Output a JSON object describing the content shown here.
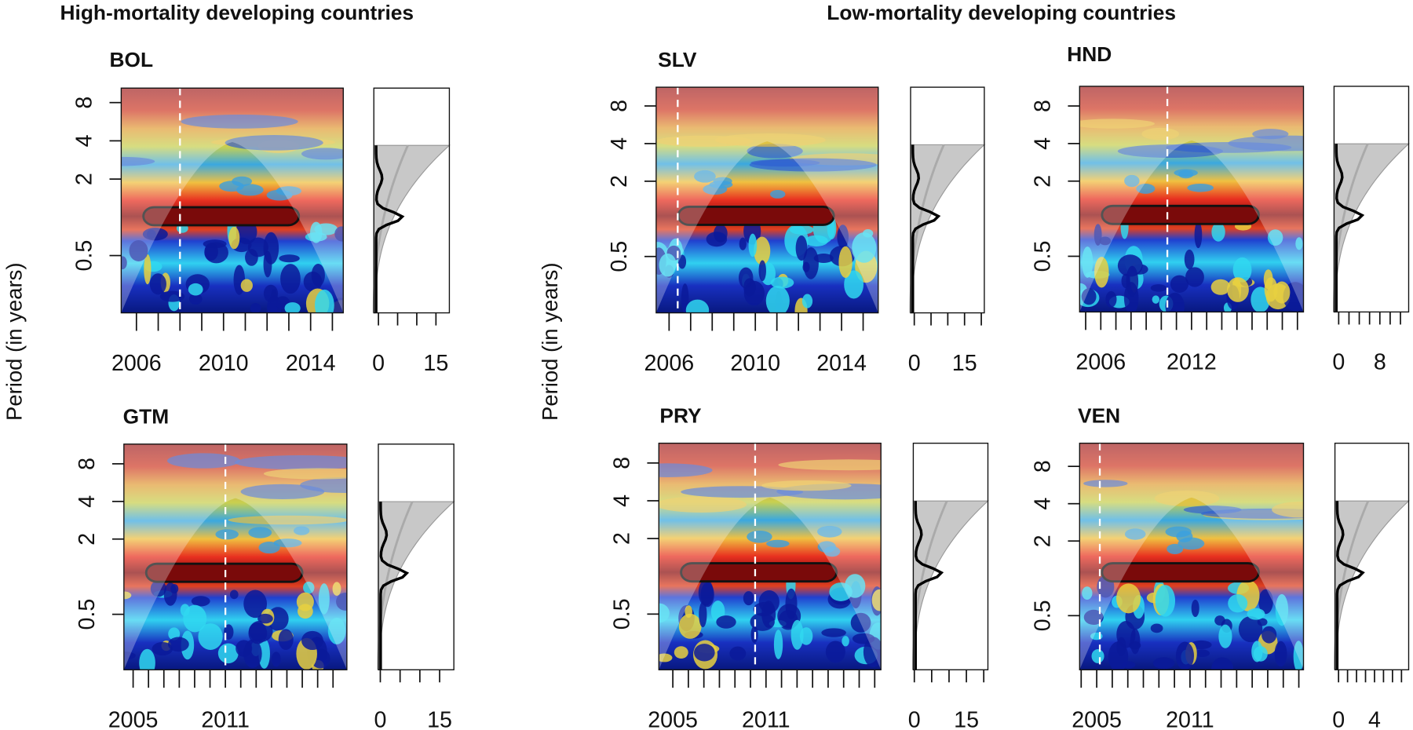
{
  "figure": {
    "group_titles": [
      "High-mortality developing countries",
      "Low-mortality developing countries"
    ],
    "ylabel": "Period (in years)"
  },
  "chart_data": [
    {
      "type": "wavelet",
      "title": "BOL",
      "xlim": [
        2005.3,
        2015.5
      ],
      "xticks": [
        2006,
        2010,
        2014
      ],
      "xminor": [
        2007,
        2008,
        2009,
        2011,
        2012,
        2013,
        2015
      ],
      "ylim": [
        0.177,
        10.4
      ],
      "yticks": [
        0.5,
        2,
        4,
        8
      ],
      "log_y": true,
      "marker_x": 2008,
      "power_xlim": [
        -1.2,
        18.5
      ],
      "power_xticks": [
        0,
        15
      ],
      "power_xminor": [
        5,
        10
      ]
    },
    {
      "type": "wavelet",
      "title": "GTM",
      "xlim": [
        2004.4,
        2018.9
      ],
      "xticks": [
        2005,
        2011
      ],
      "xminor": [
        2006,
        2007,
        2008,
        2009,
        2010,
        2012,
        2013,
        2014,
        2015,
        2016,
        2017,
        2018
      ],
      "ylim": [
        0.18,
        11.5
      ],
      "yticks": [
        0.5,
        2,
        4,
        8
      ],
      "log_y": true,
      "marker_x": 2011,
      "power_xlim": [
        -0.5,
        18.6
      ],
      "power_xticks": [
        0,
        15
      ],
      "power_xminor": [
        5,
        10
      ]
    },
    {
      "type": "wavelet",
      "title": "SLV",
      "xlim": [
        2005.4,
        2015.7
      ],
      "xticks": [
        2006,
        2010,
        2014
      ],
      "xminor": [
        2007,
        2008,
        2009,
        2011,
        2012,
        2013,
        2015
      ],
      "ylim": [
        0.177,
        11.3
      ],
      "yticks": [
        0.5,
        2,
        4,
        8
      ],
      "log_y": true,
      "marker_x": 2006.4,
      "power_xlim": [
        -1.1,
        20.9
      ],
      "power_xticks": [
        0,
        15
      ],
      "power_xminor": [
        5,
        10,
        20
      ]
    },
    {
      "type": "wavelet",
      "title": "HND",
      "xlim": [
        2004.6,
        2019.4
      ],
      "xticks": [
        2006,
        2012
      ],
      "xminor": [
        2005,
        2007,
        2008,
        2009,
        2010,
        2011,
        2013,
        2014,
        2015,
        2016,
        2017,
        2018,
        2019
      ],
      "ylim": [
        0.179,
        11.5
      ],
      "yticks": [
        0.5,
        2,
        4,
        8
      ],
      "log_y": true,
      "marker_x": 2010.4,
      "power_xlim": [
        -0.9,
        13.6
      ],
      "power_xticks": [
        0,
        8
      ],
      "power_xminor": [
        2,
        4,
        6,
        10,
        12
      ]
    },
    {
      "type": "wavelet",
      "title": "PRY",
      "xlim": [
        2004.1,
        2018.4
      ],
      "xticks": [
        2005,
        2011
      ],
      "xminor": [
        2006,
        2007,
        2008,
        2009,
        2010,
        2012,
        2013,
        2014,
        2015,
        2016,
        2017,
        2018
      ],
      "ylim": [
        0.18,
        11.5
      ],
      "yticks": [
        0.5,
        2,
        4,
        8
      ],
      "log_y": true,
      "marker_x": 2010.3,
      "power_xlim": [
        -0.3,
        21.2
      ],
      "power_xticks": [
        0,
        15
      ],
      "power_xminor": [
        5,
        10,
        20
      ]
    },
    {
      "type": "wavelet",
      "title": "VEN",
      "xlim": [
        2003.9,
        2018.3
      ],
      "xticks": [
        2005,
        2011
      ],
      "xminor": [
        2004,
        2006,
        2007,
        2008,
        2009,
        2010,
        2012,
        2013,
        2014,
        2015,
        2016,
        2017,
        2018
      ],
      "ylim": [
        0.183,
        12.3
      ],
      "yticks": [
        0.5,
        2,
        4,
        8
      ],
      "log_y": true,
      "marker_x": 2005.2,
      "power_xlim": [
        -0.4,
        7.8
      ],
      "power_xticks": [
        0,
        4
      ],
      "power_xminor": [
        1,
        2,
        3,
        5,
        6,
        7
      ]
    }
  ]
}
